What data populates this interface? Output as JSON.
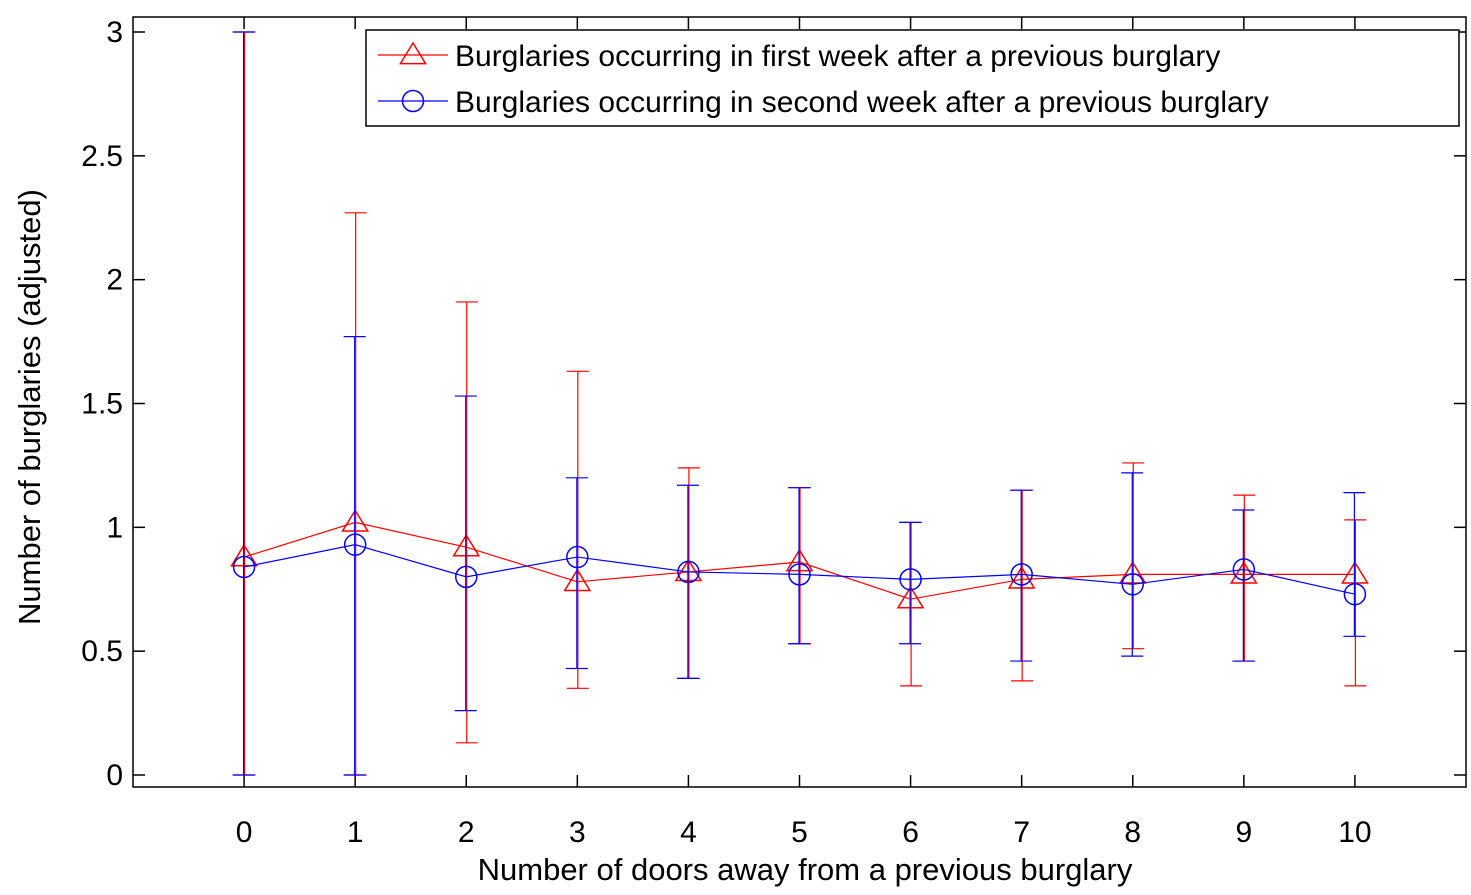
{
  "chart_data": {
    "type": "line",
    "xlabel": "Number of doors away from a previous burglary",
    "ylabel": "Number of burglaries (adjusted)",
    "xlim": [
      -1,
      11
    ],
    "ylim": [
      0,
      3
    ],
    "x": [
      0,
      1,
      2,
      3,
      4,
      5,
      6,
      7,
      8,
      9,
      10
    ],
    "x_ticks": [
      "0",
      "1",
      "2",
      "3",
      "4",
      "5",
      "6",
      "7",
      "8",
      "9",
      "10"
    ],
    "y_ticks": [
      "0",
      "0.5",
      "1",
      "1.5",
      "2",
      "2.5",
      "3"
    ],
    "y_tick_values": [
      0,
      0.5,
      1,
      1.5,
      2,
      2.5,
      3
    ],
    "grid": false,
    "legend_position": "top-right",
    "series": [
      {
        "name": "Burglaries occurring in first week after a previous burglary",
        "color": "#ff0000",
        "marker": "triangle",
        "values": [
          0.88,
          1.02,
          0.92,
          0.78,
          0.82,
          0.86,
          0.71,
          0.79,
          0.81,
          0.81,
          0.81
        ],
        "err_low": [
          0,
          0,
          0.13,
          0.35,
          0.39,
          0.53,
          0.36,
          0.38,
          0.51,
          0.46,
          0.36
        ],
        "err_high": [
          3.0,
          2.27,
          1.91,
          1.63,
          1.24,
          1.16,
          1.02,
          1.15,
          1.26,
          1.13,
          1.03
        ]
      },
      {
        "name": "Burglaries occurring in second week after a previous burglary",
        "color": "#0000ff",
        "marker": "circle",
        "values": [
          0.84,
          0.93,
          0.8,
          0.88,
          0.82,
          0.81,
          0.79,
          0.81,
          0.77,
          0.83,
          0.73
        ],
        "err_low": [
          0,
          0,
          0.26,
          0.43,
          0.39,
          0.53,
          0.53,
          0.46,
          0.48,
          0.46,
          0.56
        ],
        "err_high": [
          3.0,
          1.77,
          1.53,
          1.2,
          1.17,
          1.16,
          1.02,
          1.15,
          1.22,
          1.07,
          1.14
        ]
      }
    ]
  }
}
